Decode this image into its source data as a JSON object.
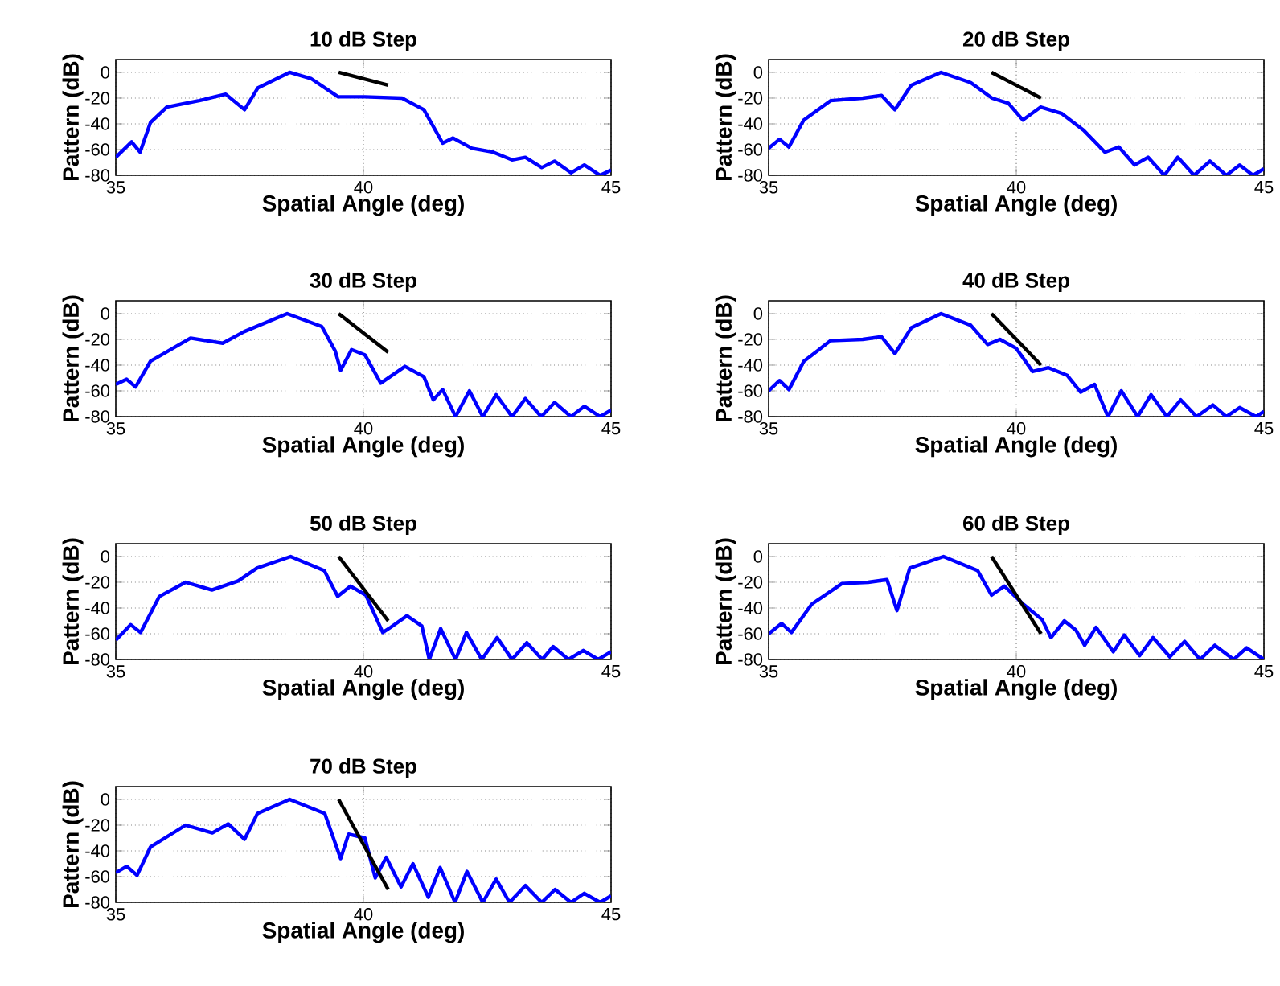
{
  "chart_data": [
    {
      "type": "line",
      "title": "10 dB Step",
      "xlabel": "Spatial Angle (deg)",
      "ylabel": "Pattern (dB)",
      "xlim": [
        35,
        45
      ],
      "ylim": [
        -80,
        10
      ],
      "xticks": [
        35,
        40,
        45
      ],
      "yticks": [
        -80,
        -60,
        -40,
        -20,
        0
      ],
      "grid": true,
      "series": [
        {
          "color": "#0000ff",
          "x": [
            35,
            35.32,
            35.49,
            35.7,
            36.03,
            36.68,
            37.22,
            37.6,
            37.87,
            38.51,
            38.95,
            39.49,
            40.03,
            40.78,
            41.22,
            41.6,
            41.81,
            42.19,
            42.62,
            43,
            43.27,
            43.6,
            43.86,
            44.19,
            44.46,
            44.78,
            45
          ],
          "values": [
            -66,
            -54,
            -62,
            -39,
            -27,
            -22,
            -17,
            -29,
            -12,
            0,
            -5,
            -19,
            -19,
            -20,
            -29,
            -55,
            -51,
            -59,
            -62,
            -68,
            -66,
            -74,
            -69,
            -78,
            -72,
            -80,
            -76
          ]
        },
        {
          "color": "#000000",
          "x": [
            39.5,
            40.5
          ],
          "values": [
            0,
            -10
          ]
        }
      ]
    },
    {
      "type": "line",
      "title": "20 dB Step",
      "xlabel": "Spatial Angle (deg)",
      "ylabel": "Pattern (dB)",
      "xlim": [
        35,
        45
      ],
      "ylim": [
        -80,
        10
      ],
      "xticks": [
        35,
        40,
        45
      ],
      "yticks": [
        -80,
        -60,
        -40,
        -20,
        0
      ],
      "grid": true,
      "series": [
        {
          "color": "#0000ff",
          "x": [
            35,
            35.22,
            35.41,
            35.71,
            36.25,
            36.9,
            37.28,
            37.55,
            37.88,
            38.48,
            39.08,
            39.51,
            39.84,
            40.13,
            40.49,
            40.92,
            41.36,
            41.79,
            42.07,
            42.39,
            42.66,
            42.99,
            43.26,
            43.59,
            43.91,
            44.24,
            44.51,
            44.78,
            45
          ],
          "values": [
            -59,
            -52,
            -58,
            -37,
            -22,
            -20,
            -18,
            -29,
            -10,
            0,
            -8,
            -20,
            -24,
            -37,
            -27,
            -32,
            -45,
            -62,
            -58,
            -72,
            -66,
            -80,
            -66,
            -80,
            -69,
            -80,
            -72,
            -80,
            -75
          ]
        },
        {
          "color": "#000000",
          "x": [
            39.5,
            40.5
          ],
          "values": [
            0,
            -20
          ]
        }
      ]
    },
    {
      "type": "line",
      "title": "30 dB Step",
      "xlabel": "Spatial Angle (deg)",
      "ylabel": "Pattern (dB)",
      "xlim": [
        35,
        45
      ],
      "ylim": [
        -80,
        10
      ],
      "xticks": [
        35,
        40,
        45
      ],
      "yticks": [
        -80,
        -60,
        -40,
        -20,
        0
      ],
      "grid": true,
      "series": [
        {
          "color": "#0000ff",
          "x": [
            35,
            35.22,
            35.4,
            35.7,
            36.51,
            37.16,
            37.59,
            38.46,
            39.16,
            39.43,
            39.54,
            39.76,
            40.03,
            40.35,
            40.84,
            41.22,
            41.41,
            41.6,
            41.86,
            42.14,
            42.41,
            42.68,
            43,
            43.27,
            43.59,
            43.86,
            44.19,
            44.46,
            44.78,
            45
          ],
          "values": [
            -55,
            -51,
            -57,
            -37,
            -19,
            -23,
            -14,
            0,
            -10,
            -29,
            -44,
            -28,
            -32,
            -54,
            -41,
            -49,
            -67,
            -59,
            -80,
            -60,
            -80,
            -63,
            -80,
            -66,
            -80,
            -69,
            -80,
            -72,
            -80,
            -75
          ]
        },
        {
          "color": "#000000",
          "x": [
            39.5,
            40.5
          ],
          "values": [
            0,
            -30
          ]
        }
      ]
    },
    {
      "type": "line",
      "title": "40 dB Step",
      "xlabel": "Spatial Angle (deg)",
      "ylabel": "Pattern (dB)",
      "xlim": [
        35,
        45
      ],
      "ylim": [
        -80,
        10
      ],
      "xticks": [
        35,
        40,
        45
      ],
      "yticks": [
        -80,
        -60,
        -40,
        -20,
        0
      ],
      "grid": true,
      "series": [
        {
          "color": "#0000ff",
          "x": [
            35,
            35.22,
            35.41,
            35.71,
            36.25,
            36.9,
            37.28,
            37.55,
            37.88,
            38.48,
            39.08,
            39.42,
            39.67,
            40,
            40.33,
            40.65,
            41.03,
            41.3,
            41.58,
            41.85,
            42.12,
            42.45,
            42.72,
            43.04,
            43.32,
            43.64,
            43.97,
            44.24,
            44.51,
            44.84,
            45
          ],
          "values": [
            -60,
            -52,
            -59,
            -37,
            -21,
            -20,
            -18,
            -31,
            -11,
            0,
            -9,
            -24,
            -20,
            -27,
            -45,
            -42,
            -48,
            -61,
            -55,
            -80,
            -60,
            -80,
            -63,
            -80,
            -67,
            -80,
            -71,
            -80,
            -73,
            -80,
            -76
          ]
        },
        {
          "color": "#000000",
          "x": [
            39.5,
            40.5
          ],
          "values": [
            0,
            -40
          ]
        }
      ]
    },
    {
      "type": "line",
      "title": "50 dB Step",
      "xlabel": "Spatial Angle (deg)",
      "ylabel": "Pattern (dB)",
      "xlim": [
        35,
        45
      ],
      "ylim": [
        -80,
        10
      ],
      "xticks": [
        35,
        40,
        45
      ],
      "yticks": [
        -80,
        -60,
        -40,
        -20,
        0
      ],
      "grid": true,
      "series": [
        {
          "color": "#0000ff",
          "x": [
            35,
            35.3,
            35.5,
            35.88,
            36.41,
            36.94,
            37.47,
            37.85,
            38.53,
            39.21,
            39.48,
            39.74,
            40.05,
            40.39,
            40.55,
            40.88,
            41.18,
            41.33,
            41.56,
            41.86,
            42.08,
            42.39,
            42.7,
            43,
            43.3,
            43.61,
            43.83,
            44.14,
            44.44,
            44.74,
            45
          ],
          "values": [
            -65,
            -53,
            -59,
            -31,
            -20,
            -26,
            -19,
            -9,
            0,
            -11,
            -31,
            -23,
            -30,
            -59,
            -55,
            -46,
            -54,
            -80,
            -56,
            -80,
            -59,
            -80,
            -63,
            -80,
            -67,
            -80,
            -70,
            -80,
            -73,
            -80,
            -74
          ]
        },
        {
          "color": "#000000",
          "x": [
            39.5,
            40.5
          ],
          "values": [
            0,
            -50
          ]
        }
      ]
    },
    {
      "type": "line",
      "title": "60 dB Step",
      "xlabel": "Spatial Angle (deg)",
      "ylabel": "Pattern (dB)",
      "xlim": [
        35,
        45
      ],
      "ylim": [
        -80,
        10
      ],
      "xticks": [
        35,
        40,
        45
      ],
      "yticks": [
        -80,
        -60,
        -40,
        -20,
        0
      ],
      "grid": true,
      "series": [
        {
          "color": "#0000ff",
          "x": [
            35,
            35.26,
            35.46,
            35.87,
            36.48,
            37.01,
            37.39,
            37.59,
            37.85,
            38.53,
            39.22,
            39.5,
            39.76,
            40.14,
            40.52,
            40.7,
            40.97,
            41.2,
            41.38,
            41.61,
            41.96,
            42.18,
            42.49,
            42.76,
            43.1,
            43.4,
            43.71,
            44.01,
            44.39,
            44.65,
            45
          ],
          "values": [
            -60,
            -52,
            -59,
            -37,
            -21,
            -20,
            -18,
            -42,
            -9,
            0,
            -11,
            -30,
            -23,
            -37,
            -49,
            -63,
            -50,
            -57,
            -69,
            -55,
            -74,
            -61,
            -77,
            -63,
            -78,
            -66,
            -80,
            -69,
            -80,
            -71,
            -80
          ]
        },
        {
          "color": "#000000",
          "x": [
            39.5,
            40.5
          ],
          "values": [
            0,
            -60
          ]
        }
      ]
    },
    {
      "type": "line",
      "title": "70 dB Step",
      "xlabel": "Spatial Angle (deg)",
      "ylabel": "Pattern (dB)",
      "xlim": [
        35,
        45
      ],
      "ylim": [
        -80,
        10
      ],
      "xticks": [
        35,
        40,
        45
      ],
      "yticks": [
        -80,
        -60,
        -40,
        -20,
        0
      ],
      "grid": true,
      "series": [
        {
          "color": "#0000ff",
          "x": [
            35,
            35.22,
            35.43,
            35.7,
            36.41,
            36.95,
            37.27,
            37.6,
            37.86,
            38.51,
            39.22,
            39.54,
            39.7,
            40.03,
            40.24,
            40.46,
            40.76,
            41,
            41.31,
            41.55,
            41.85,
            42.09,
            42.41,
            42.68,
            42.95,
            43.27,
            43.6,
            43.87,
            44.19,
            44.46,
            44.78,
            45
          ],
          "values": [
            -57,
            -52,
            -59,
            -37,
            -20,
            -26,
            -19,
            -31,
            -11,
            0,
            -11,
            -46,
            -27,
            -30,
            -61,
            -45,
            -68,
            -50,
            -76,
            -53,
            -80,
            -56,
            -80,
            -62,
            -80,
            -67,
            -80,
            -70,
            -80,
            -73,
            -80,
            -75
          ]
        },
        {
          "color": "#000000",
          "x": [
            39.5,
            40.5
          ],
          "values": [
            0,
            -70
          ]
        }
      ]
    }
  ]
}
